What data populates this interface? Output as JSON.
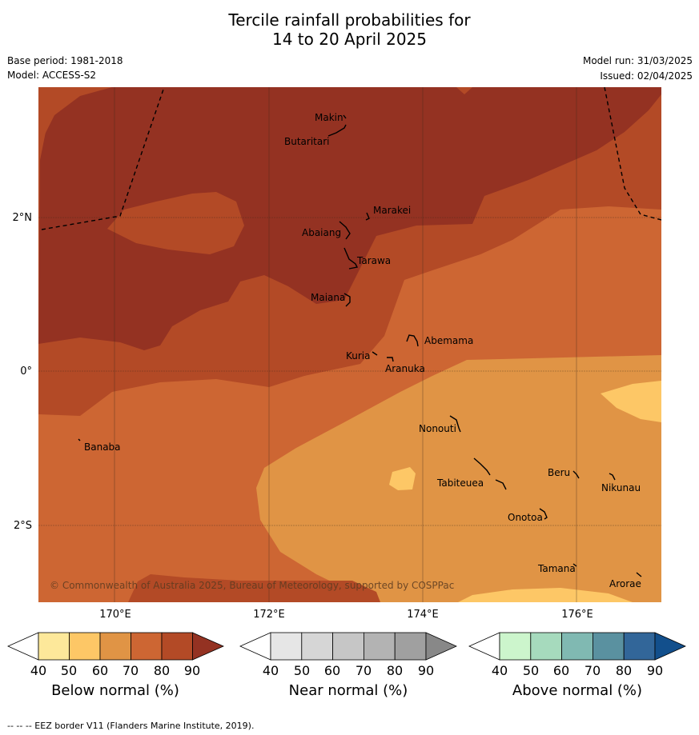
{
  "title": {
    "line1": "Tercile rainfall probabilities for",
    "line2": "14 to 20 April 2025"
  },
  "meta": {
    "base_period": "Base period: 1981-2018",
    "model": "Model: ACCESS-S2",
    "model_run": "Model run: 31/03/2025",
    "issued": "Issued: 02/04/2025"
  },
  "axes": {
    "lat_labels": [
      "2°N",
      "0°",
      "2°S"
    ],
    "lon_labels": [
      "170°E",
      "172°E",
      "174°E",
      "176°E"
    ]
  },
  "places": [
    "Makin",
    "Butaritari",
    "Marakei",
    "Abaiang",
    "Tarawa",
    "Maiana",
    "Abemama",
    "Kuria",
    "Aranuka",
    "Banaba",
    "Nonouti",
    "Beru",
    "Nikunau",
    "Tabiteuea",
    "Onotoa",
    "Tamana",
    "Arorae"
  ],
  "copyright": "© Commonwealth of Australia 2025, Bureau of Meteorology, supported by COSPPac",
  "colorbars": [
    {
      "title": "Below normal (%)",
      "ticks": [
        "40",
        "50",
        "60",
        "70",
        "80",
        "90"
      ],
      "colors": [
        "#ffffff",
        "#fde89a",
        "#fdc766",
        "#e09445",
        "#cd6633",
        "#b34a26",
        "#943222"
      ]
    },
    {
      "title": "Near normal (%)",
      "ticks": [
        "40",
        "50",
        "60",
        "70",
        "80",
        "90"
      ],
      "colors": [
        "#ffffff",
        "#e6e6e6",
        "#d6d6d6",
        "#c6c6c6",
        "#b3b3b3",
        "#a0a0a0",
        "#888888"
      ]
    },
    {
      "title": "Above normal (%)",
      "ticks": [
        "40",
        "50",
        "60",
        "70",
        "80",
        "90"
      ],
      "colors": [
        "#ffffff",
        "#ccf5cc",
        "#a6dabd",
        "#80b9b2",
        "#5a91a0",
        "#326699",
        "#124f8c"
      ]
    }
  ],
  "footer": "--  --  -- EEZ border V11 (Flanders Marine Institute, 2019).",
  "map_colors": {
    "p90plus": "#943222",
    "p80": "#b34a26",
    "p70": "#cd6633",
    "p60": "#e09445",
    "p50": "#fdc766"
  }
}
